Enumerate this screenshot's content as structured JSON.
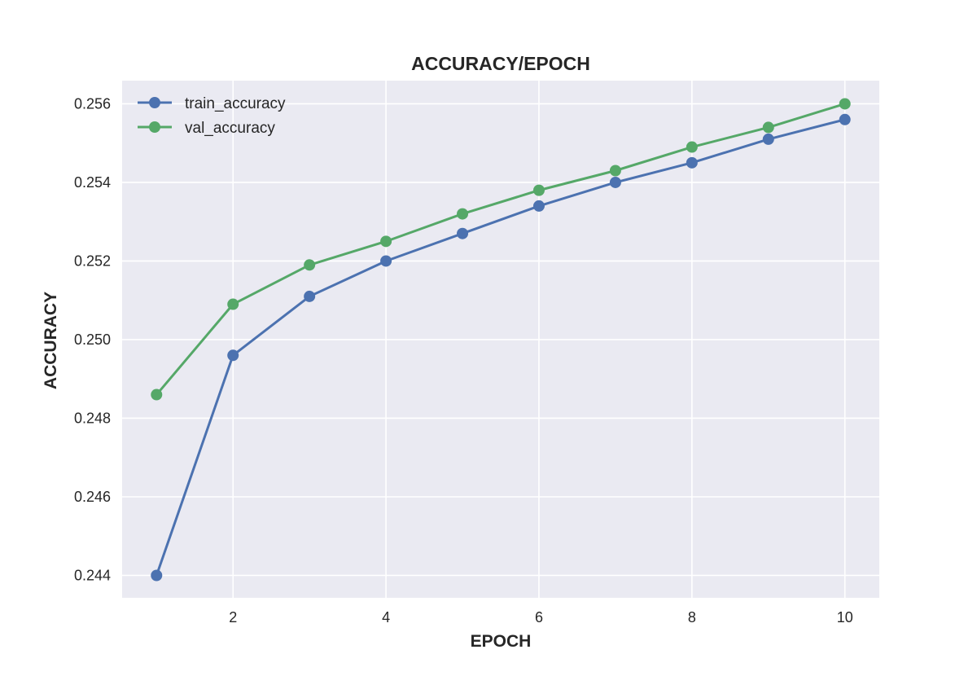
{
  "chart_data": {
    "type": "line",
    "title": "ACCURACY/EPOCH",
    "xlabel": "EPOCH",
    "ylabel": "ACCURACY",
    "x": [
      1,
      2,
      3,
      4,
      5,
      6,
      7,
      8,
      9,
      10
    ],
    "xlim": [
      0.55,
      10.45
    ],
    "ylim": [
      0.24343,
      0.25659
    ],
    "xticks": [
      2,
      4,
      6,
      8,
      10
    ],
    "xtick_labels": [
      "2",
      "4",
      "6",
      "8",
      "10"
    ],
    "yticks": [
      0.244,
      0.246,
      0.248,
      0.25,
      0.252,
      0.254,
      0.256
    ],
    "ytick_labels": [
      "0.244",
      "0.246",
      "0.248",
      "0.250",
      "0.252",
      "0.254",
      "0.256"
    ],
    "grid": true,
    "legend_position": "top-left",
    "series": [
      {
        "name": "train_accuracy",
        "color": "#4c72b0",
        "values": [
          0.244,
          0.2496,
          0.2511,
          0.252,
          0.2527,
          0.2534,
          0.254,
          0.2545,
          0.2551,
          0.2556
        ]
      },
      {
        "name": "val_accuracy",
        "color": "#55a868",
        "values": [
          0.2486,
          0.2509,
          0.2519,
          0.2525,
          0.2532,
          0.2538,
          0.2543,
          0.2549,
          0.2554,
          0.256
        ]
      }
    ],
    "plot_background": "#eaeaf2",
    "grid_color": "#ffffff"
  }
}
